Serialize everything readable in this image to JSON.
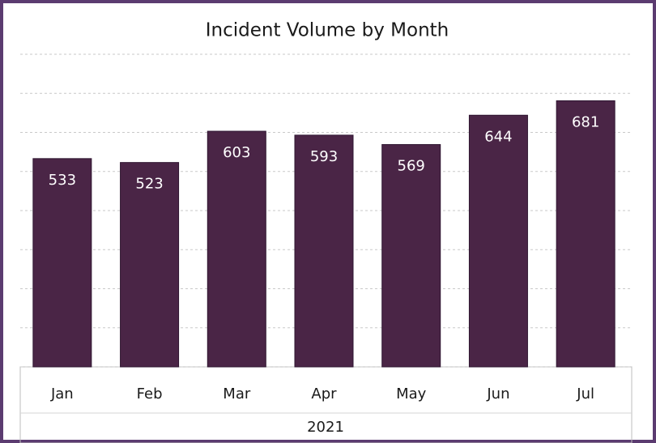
{
  "chart_data": {
    "type": "bar",
    "title": "Incident Volume by Month",
    "categories": [
      "Jan",
      "Feb",
      "Mar",
      "Apr",
      "May",
      "Jun",
      "Jul"
    ],
    "values": [
      533,
      523,
      603,
      593,
      569,
      644,
      681
    ],
    "xlabel": "2021",
    "color": "#4a2546",
    "ylim": [
      0,
      800
    ],
    "yticks": [
      0,
      100,
      200,
      300,
      400,
      500,
      600,
      700,
      800
    ],
    "grid": true
  }
}
